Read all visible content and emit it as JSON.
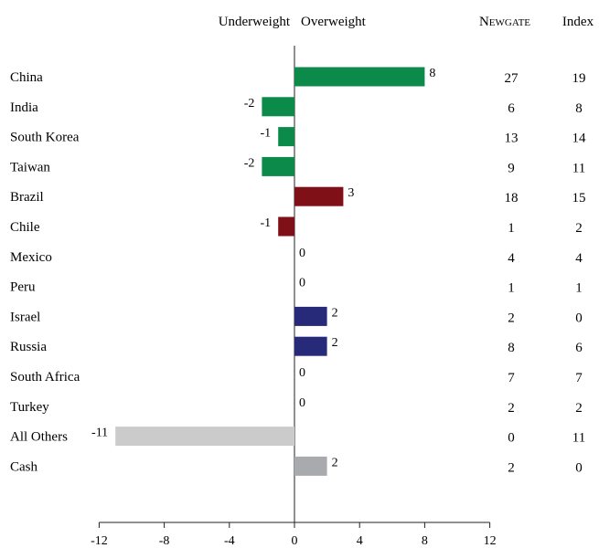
{
  "header": {
    "underweight_label": "Underweight",
    "overweight_label": "Overweight",
    "newgate_label": "Newgate",
    "index_label": "Index"
  },
  "colors": {
    "green": "#0b8a4a",
    "red": "#7f1018",
    "navy": "#272a78",
    "lightgray": "#cbcbcb",
    "midgray": "#a9aaad"
  },
  "chart_data": {
    "type": "bar",
    "orientation": "horizontal",
    "categories": [
      "China",
      "India",
      "South Korea",
      "Taiwan",
      "Brazil",
      "Chile",
      "Mexico",
      "Peru",
      "Israel",
      "Russia",
      "South Africa",
      "Turkey",
      "All Others",
      "Cash"
    ],
    "values": [
      8,
      -2,
      -1,
      -2,
      3,
      -1,
      0,
      0,
      2,
      2,
      0,
      0,
      -11,
      2
    ],
    "bar_colors": [
      "green",
      "green",
      "green",
      "green",
      "red",
      "red",
      "red",
      "red",
      "navy",
      "navy",
      "navy",
      "navy",
      "lightgray",
      "midgray"
    ],
    "newgate": [
      27,
      6,
      13,
      9,
      18,
      1,
      4,
      1,
      2,
      8,
      7,
      2,
      0,
      2
    ],
    "index": [
      19,
      8,
      14,
      11,
      15,
      2,
      4,
      1,
      0,
      6,
      7,
      2,
      11,
      0
    ],
    "xlim": [
      -12,
      12
    ],
    "xticks": [
      -12,
      -8,
      -4,
      0,
      4,
      8,
      12
    ],
    "grid": false
  }
}
